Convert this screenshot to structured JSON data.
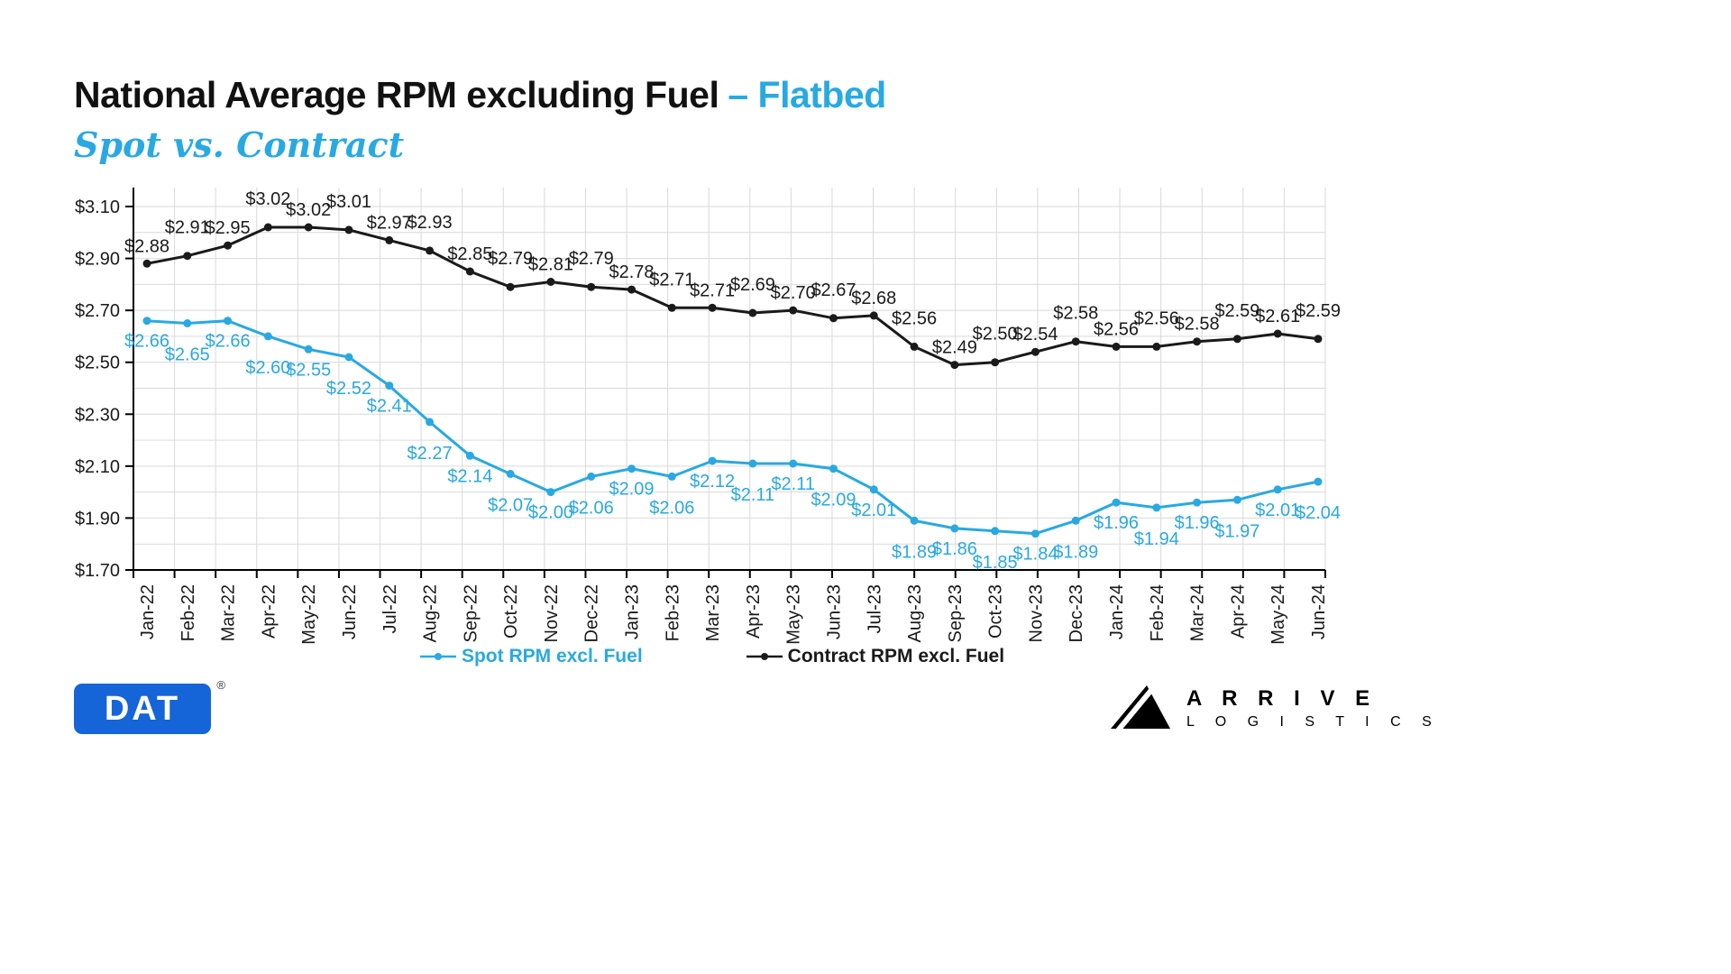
{
  "header": {
    "title_main": "National Average RPM excluding Fuel",
    "title_highlight": "– Flatbed",
    "subtitle": "Spot vs. Contract"
  },
  "colors": {
    "spot": "#29A9E2",
    "contract": "#1a1a1a",
    "grid": "#d9d9d9",
    "axis": "#000000",
    "dat_blue": "#1565D8",
    "accent_blue": "#29A9E2"
  },
  "chart_data": {
    "type": "line",
    "title": "National Average RPM excluding Fuel – Flatbed",
    "categories": [
      "Jan-22",
      "Feb-22",
      "Mar-22",
      "Apr-22",
      "May-22",
      "Jun-22",
      "Jul-22",
      "Aug-22",
      "Sep-22",
      "Oct-22",
      "Nov-22",
      "Dec-22",
      "Jan-23",
      "Feb-23",
      "Mar-23",
      "Apr-23",
      "May-23",
      "Jun-23",
      "Jul-23",
      "Aug-23",
      "Sep-23",
      "Oct-23",
      "Nov-23",
      "Dec-23",
      "Jan-24",
      "Feb-24",
      "Mar-24",
      "Apr-24",
      "May-24",
      "Jun-24"
    ],
    "series": [
      {
        "name": "Spot RPM excl. Fuel",
        "color": "#29A9E2",
        "labels_below": true,
        "values": [
          2.66,
          2.65,
          2.66,
          2.6,
          2.55,
          2.52,
          2.41,
          2.27,
          2.14,
          2.07,
          2.0,
          2.06,
          2.09,
          2.06,
          2.12,
          2.11,
          2.11,
          2.09,
          2.01,
          1.89,
          1.86,
          1.85,
          1.84,
          1.89,
          1.96,
          1.94,
          1.96,
          1.97,
          2.01,
          2.04
        ]
      },
      {
        "name": "Contract RPM excl. Fuel",
        "color": "#1a1a1a",
        "labels_below": false,
        "values": [
          2.88,
          2.91,
          2.95,
          3.02,
          3.02,
          3.01,
          2.97,
          2.93,
          2.85,
          2.79,
          2.81,
          2.79,
          2.78,
          2.71,
          2.71,
          2.69,
          2.7,
          2.67,
          2.68,
          2.56,
          2.49,
          2.5,
          2.54,
          2.58,
          2.56,
          2.56,
          2.58,
          2.59,
          2.61,
          2.59
        ]
      }
    ],
    "ylim": [
      1.7,
      3.1
    ],
    "ytick_labels": [
      "$3.10",
      "$2.90",
      "$2.70",
      "$2.50",
      "$2.30",
      "$2.10",
      "$1.90",
      "$1.70"
    ],
    "ytick_values": [
      3.1,
      2.9,
      2.7,
      2.5,
      2.3,
      2.1,
      1.9,
      1.7
    ],
    "value_prefix": "$",
    "grid": true,
    "legend_position": "bottom"
  },
  "footer": {
    "dat_logo_text": "DAT",
    "dat_reg_mark": "®",
    "arrive_line1": "A R R I V E",
    "arrive_line2": "L O G I S T I C S"
  }
}
